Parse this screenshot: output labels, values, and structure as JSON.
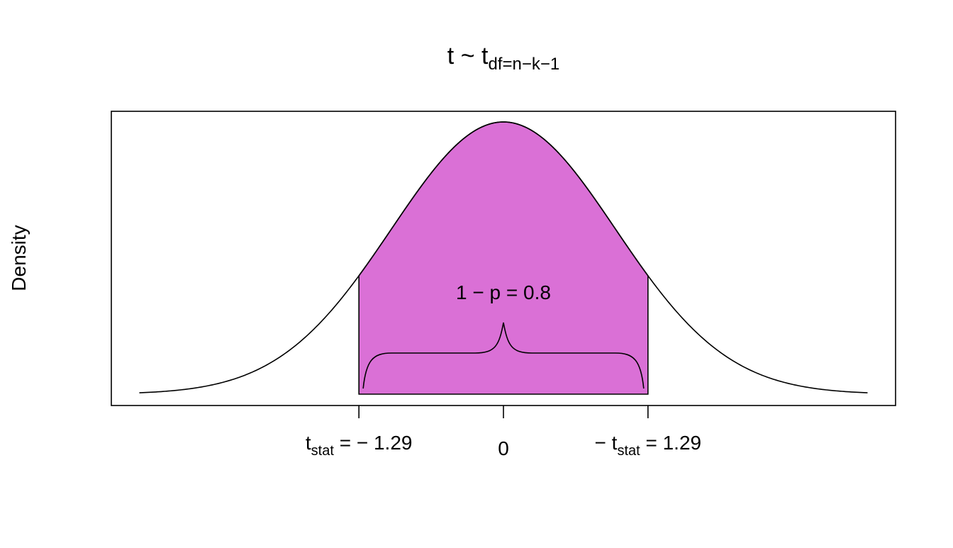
{
  "chart_data": {
    "type": "area",
    "title": {
      "main": "t ~ t",
      "subscript": "df=n−k−1"
    },
    "ylabel": "Density",
    "xlabel": "",
    "distribution": "t",
    "xlim": [
      -3.5,
      3.5
    ],
    "curve_x_range": [
      -3.25,
      3.25
    ],
    "shaded_region": [
      -1.29,
      1.29
    ],
    "shaded_color": "#DA70D6",
    "annotation": "1 − p = 0.8",
    "ticks": [
      {
        "value": -1.29,
        "label_main": "t",
        "label_sub": "stat",
        "label_rest": " = − 1.29"
      },
      {
        "value": 0,
        "label_main": "0",
        "label_sub": "",
        "label_rest": ""
      },
      {
        "value": 1.29,
        "label_main": "− t",
        "label_sub": "stat",
        "label_rest": " = 1.29"
      }
    ],
    "grid": false,
    "legend": "none"
  }
}
